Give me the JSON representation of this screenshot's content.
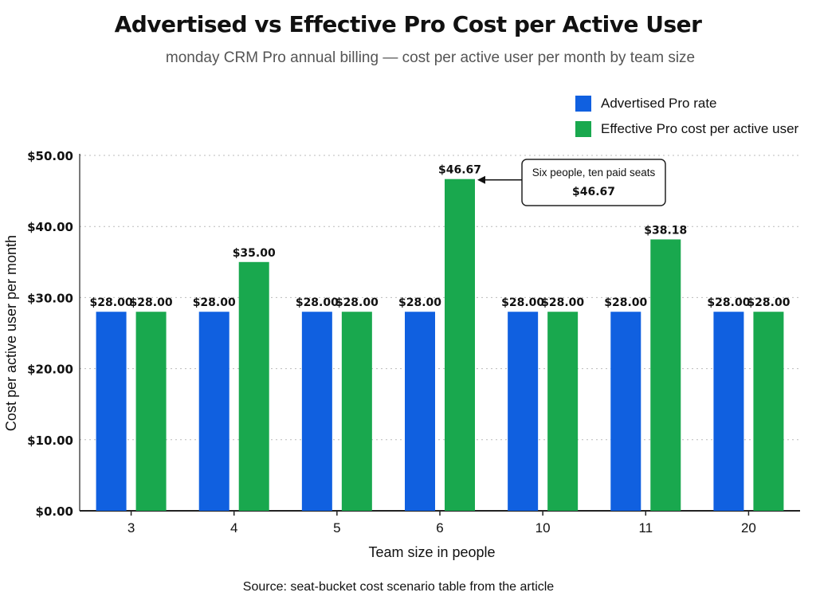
{
  "colors": {
    "advertised": "#1060e0",
    "effective": "#19a84e"
  },
  "chart_data": {
    "type": "bar",
    "title": "Advertised vs Effective Pro Cost per Active User",
    "subtitle": "monday CRM Pro annual billing — cost per active user per month by team size",
    "xlabel": "Team size in people",
    "ylabel": "Cost per active user per month",
    "categories": [
      "3",
      "4",
      "5",
      "6",
      "10",
      "11",
      "20"
    ],
    "series": [
      {
        "name": "Advertised Pro rate",
        "values": [
          28.0,
          28.0,
          28.0,
          28.0,
          28.0,
          28.0,
          28.0
        ],
        "labels": [
          "$28.00",
          "$28.00",
          "$28.00",
          "$28.00",
          "$28.00",
          "$28.00",
          "$28.00"
        ]
      },
      {
        "name": "Effective Pro cost per active user",
        "values": [
          28.0,
          35.0,
          28.0,
          46.67,
          28.0,
          38.18,
          28.0
        ],
        "labels": [
          "$28.00",
          "$35.00",
          "$28.00",
          "$46.67",
          "$28.00",
          "$38.18",
          "$28.00"
        ]
      }
    ],
    "ylim": [
      0,
      50
    ],
    "yticks": [
      0,
      10,
      20,
      30,
      40,
      50
    ],
    "ytick_labels": [
      "$0.00",
      "$10.00",
      "$20.00",
      "$30.00",
      "$40.00",
      "$50.00"
    ],
    "grid": "horizontal dotted",
    "legend_position": "top-right",
    "annotation": {
      "category": "6",
      "series": 1,
      "line1": "Six people, ten paid seats",
      "line2": "$46.67"
    },
    "source": "Source: seat-bucket cost scenario table from the article"
  }
}
